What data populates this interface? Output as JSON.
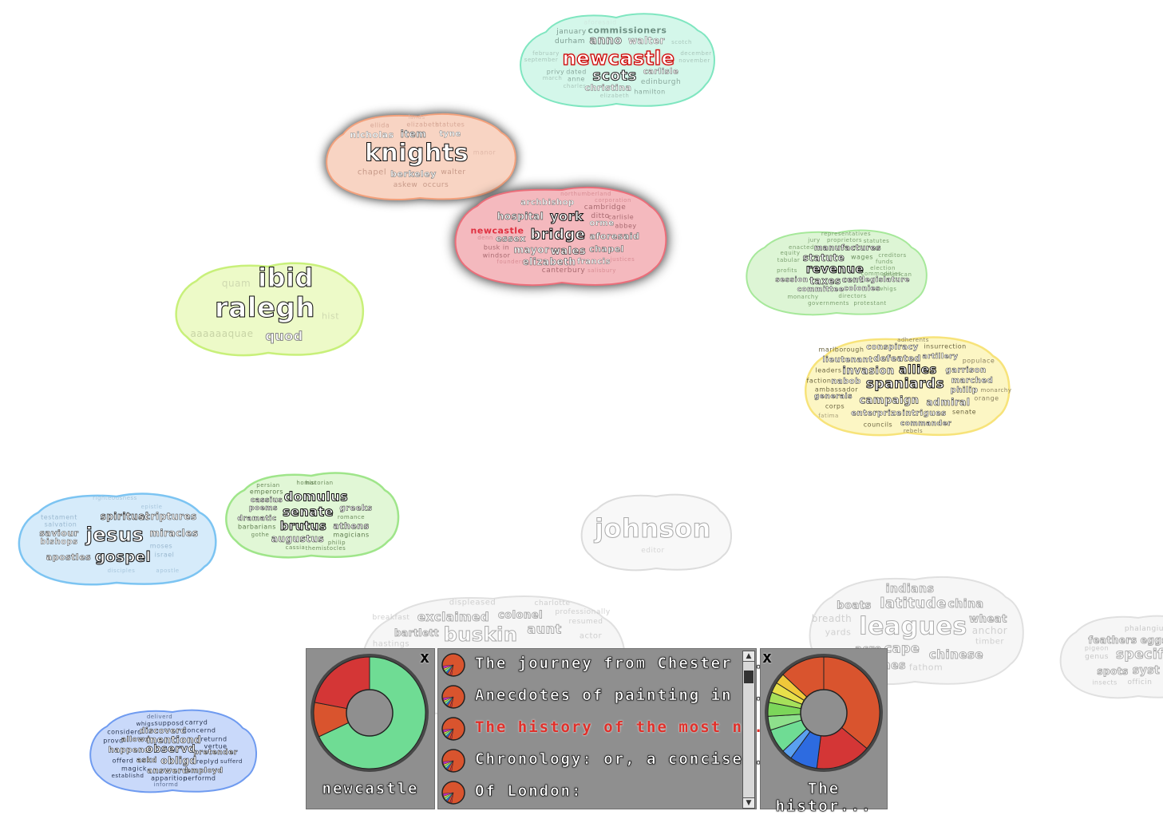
{
  "clouds": {
    "newcastle_top": {
      "words": [
        "aforesaid",
        "january",
        "commissioners",
        "durham",
        "anno",
        "walter",
        "newcastle",
        "scots",
        "carlisle",
        "privy",
        "dated",
        "anne",
        "edinburgh",
        "christina",
        "hamilton",
        "february",
        "september",
        "elizabeth",
        "december",
        "november",
        "scotch",
        "march",
        "charles"
      ]
    },
    "knights": {
      "words": [
        "nicholas",
        "item",
        "tyne",
        "knights",
        "chapel",
        "berkeley",
        "walter",
        "askew",
        "occurs",
        "elizabeth",
        "statutes",
        "ellida",
        "lands",
        "manor"
      ]
    },
    "york": {
      "words": [
        "northumberland",
        "archbishop",
        "corporation",
        "cambridge",
        "hospital",
        "york",
        "ditto",
        "carlisle",
        "orme",
        "abbey",
        "newcastle",
        "bridge",
        "aforesaid",
        "essex",
        "chapel",
        "busk in",
        "mayor",
        "wales",
        "windsor",
        "elizabeth",
        "francis",
        "canterbury",
        "salisbury",
        "denn",
        "justices",
        "founders"
      ]
    },
    "ralegh": {
      "words": [
        "ibid",
        "quam",
        "ralegh",
        "aaaaaaquae",
        "quod",
        "hist"
      ]
    },
    "revenue": {
      "words": [
        "representatives",
        "jury",
        "proprietors",
        "statutes",
        "enacted",
        "manufactures",
        "equity",
        "statute",
        "wages",
        "creditors",
        "tabular",
        "funds",
        "profits",
        "revenue",
        "election",
        "session",
        "taxes",
        "cent",
        "legislature",
        "committee",
        "colonies",
        "whigs",
        "monarchy",
        "directors",
        "governments",
        "protestant",
        "commodities",
        "american"
      ]
    },
    "spaniards": {
      "words": [
        "adherents",
        "marlborough",
        "conspiracy",
        "insurrection",
        "lieutenant",
        "defeated",
        "artillery",
        "populace",
        "leaders",
        "invasion",
        "allies",
        "garrison",
        "faction",
        "nabob",
        "spaniards",
        "marched",
        "ambassador",
        "philip",
        "monarchy",
        "generals",
        "campaign",
        "admiral",
        "orange",
        "corps",
        "enterprize",
        "intrigues",
        "senate",
        "councils",
        "commander",
        "rebels",
        "fatima"
      ]
    },
    "jesus": {
      "words": [
        "righteousness",
        "spiritual",
        "scriptures",
        "testament",
        "salvation",
        "saviour",
        "jesus",
        "miracles",
        "bishops",
        "apostles",
        "gospel",
        "moses",
        "israel",
        "disciples",
        "epistle",
        "apostle"
      ]
    },
    "domulus": {
      "words": [
        "homar",
        "historian",
        "persian",
        "emperors",
        "cassius",
        "domulus",
        "poems",
        "senate",
        "greeks",
        "dramatic",
        "brutus",
        "athens",
        "barbarians",
        "augustus",
        "magicians",
        "gothe",
        "romance",
        "philip",
        "cassia",
        "themistocles"
      ]
    },
    "johnson": {
      "words": [
        "johnson",
        "editor"
      ]
    },
    "buskin": {
      "words": [
        "displeased",
        "charlotte",
        "exclaimed",
        "colonel",
        "professionally",
        "breakfast",
        "resumed",
        "bartlett",
        "buskin",
        "aunt",
        "actor",
        "hastings",
        "berkeley",
        "assured",
        "countess",
        "marquis",
        "accompanied",
        "house"
      ]
    },
    "leagues": {
      "words": [
        "indians",
        "latitude",
        "china",
        "boats",
        "leagues",
        "wheat",
        "breadth",
        "anchor",
        "yards",
        "timber",
        "acre",
        "cape",
        "chinese",
        "inches",
        "fathom"
      ]
    },
    "feathers": {
      "words": [
        "phalangium",
        "feathers",
        "eggs",
        "specif",
        "genus",
        "spots",
        "syst",
        "officin",
        "insects",
        "pigeon"
      ]
    },
    "observd": {
      "words": [
        "deliverd",
        "whigs",
        "supposd",
        "carryd",
        "considerd",
        "discoverd",
        "concernd",
        "provd",
        "allowd",
        "mentiond",
        "returnd",
        "vertue",
        "happend",
        "observd",
        "pretender",
        "offerd",
        "askd",
        "obligd",
        "replyd",
        "sufferd",
        "magick",
        "answerd",
        "employd",
        "establishd",
        "apparition",
        "performd",
        "informd"
      ]
    }
  },
  "panel_left": {
    "close_label": "x",
    "label": "newcastle",
    "donut": [
      {
        "value": 0.68,
        "color": "#6fdc94"
      },
      {
        "value": 0.1,
        "color": "#d9542e"
      },
      {
        "value": 0.22,
        "color": "#d43636"
      }
    ]
  },
  "document_list": {
    "items": [
      {
        "title": "The journey from Chester t...",
        "active": false
      },
      {
        "title": "Anecdotes of painting in E...",
        "active": false
      },
      {
        "title": "The history of the most no...",
        "active": true
      },
      {
        "title": "Chronology: or, a concise ...",
        "active": false
      },
      {
        "title": "Of London:",
        "active": false
      }
    ],
    "scroll_up": "▲",
    "scroll_down": "▼"
  },
  "panel_right": {
    "close_label": "x",
    "label": "The histor...",
    "donut": [
      {
        "value": 0.36,
        "color": "#d9542e"
      },
      {
        "value": 0.16,
        "color": "#d43636"
      },
      {
        "value": 0.08,
        "color": "#2d6be0"
      },
      {
        "value": 0.03,
        "color": "#5aa0f0"
      },
      {
        "value": 0.07,
        "color": "#6fdc94"
      },
      {
        "value": 0.04,
        "color": "#8ee08c"
      },
      {
        "value": 0.04,
        "color": "#7cd65a"
      },
      {
        "value": 0.03,
        "color": "#a6e05a"
      },
      {
        "value": 0.03,
        "color": "#e8e04a"
      },
      {
        "value": 0.03,
        "color": "#f0c83a"
      },
      {
        "value": 0.13,
        "color": "#d9542e"
      }
    ]
  },
  "colors": {
    "newcastle_top": "#7fe6c0",
    "knights": "#f3a17c",
    "york": "#ec6e7a",
    "ralegh": "#c8f07a",
    "revenue": "#a6e89a",
    "spaniards": "#f7e37a",
    "jesus": "#7cc4f2",
    "domulus": "#9fe58a",
    "observd": "#6f9bf0",
    "ghost": "#d0d0d0",
    "panel": "#8f8f8f",
    "active_title": "#e0302a"
  }
}
